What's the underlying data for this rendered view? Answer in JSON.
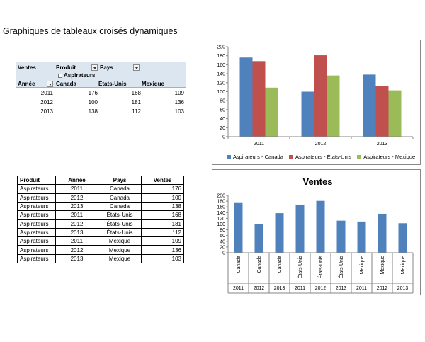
{
  "page": {
    "title": "Graphiques de tableaux croisés dynamiques"
  },
  "pivot": {
    "values_field": "Ventes",
    "row_field_product": "Produit",
    "col_field": "Pays",
    "product_item": "Aspirateurs",
    "row_field": "Année",
    "countries": [
      "Canada",
      "États-Unis",
      "Mexique"
    ],
    "rows": [
      {
        "year": "2011",
        "values": [
          "176",
          "168",
          "109"
        ]
      },
      {
        "year": "2012",
        "values": [
          "100",
          "181",
          "136"
        ]
      },
      {
        "year": "2013",
        "values": [
          "138",
          "112",
          "103"
        ]
      }
    ]
  },
  "source": {
    "headers": [
      "Produit",
      "Année",
      "Pays",
      "Ventes"
    ],
    "rows": [
      [
        "Aspirateurs",
        "2011",
        "Canada",
        "176"
      ],
      [
        "Aspirateurs",
        "2012",
        "Canada",
        "100"
      ],
      [
        "Aspirateurs",
        "2013",
        "Canada",
        "138"
      ],
      [
        "Aspirateurs",
        "2011",
        "États-Unis",
        "168"
      ],
      [
        "Aspirateurs",
        "2012",
        "États-Unis",
        "181"
      ],
      [
        "Aspirateurs",
        "2013",
        "États-Unis",
        "112"
      ],
      [
        "Aspirateurs",
        "2011",
        "Mexique",
        "109"
      ],
      [
        "Aspirateurs",
        "2012",
        "Mexique",
        "136"
      ],
      [
        "Aspirateurs",
        "2013",
        "Mexique",
        "103"
      ]
    ]
  },
  "chart_data": [
    {
      "type": "bar",
      "title": "",
      "categories": [
        "2011",
        "2012",
        "2013"
      ],
      "series": [
        {
          "name": "Aspirateurs - Canada",
          "values": [
            176,
            100,
            138
          ],
          "color": "#4f81bd"
        },
        {
          "name": "Aspirateurs - États-Unis",
          "values": [
            168,
            181,
            112
          ],
          "color": "#c0504d"
        },
        {
          "name": "Aspirateurs - Mexique",
          "values": [
            109,
            136,
            103
          ],
          "color": "#9bbb59"
        }
      ],
      "ylim": [
        0,
        200
      ],
      "yticks": [
        "0",
        "20",
        "40",
        "60",
        "80",
        "100",
        "120",
        "140",
        "160",
        "180",
        "200"
      ],
      "legend": "bottom",
      "grid": false
    },
    {
      "type": "bar",
      "title": "Ventes",
      "categories": [
        {
          "country": "Canada",
          "year": "2011"
        },
        {
          "country": "Canada",
          "year": "2012"
        },
        {
          "country": "Canada",
          "year": "2013"
        },
        {
          "country": "États-Unis",
          "year": "2011"
        },
        {
          "country": "États-Unis",
          "year": "2012"
        },
        {
          "country": "États-Unis",
          "year": "2013"
        },
        {
          "country": "Mexique",
          "year": "2011"
        },
        {
          "country": "Mexique",
          "year": "2012"
        },
        {
          "country": "Mexique",
          "year": "2013"
        }
      ],
      "series": [
        {
          "values": [
            176,
            100,
            138,
            168,
            181,
            112,
            109,
            136,
            103
          ],
          "color": "#4f81bd"
        }
      ],
      "ylim": [
        0,
        200
      ],
      "yticks": [
        "0",
        "20",
        "40",
        "60",
        "80",
        "100",
        "120",
        "140",
        "160",
        "180",
        "200"
      ],
      "legend": "none",
      "grid": false
    }
  ]
}
